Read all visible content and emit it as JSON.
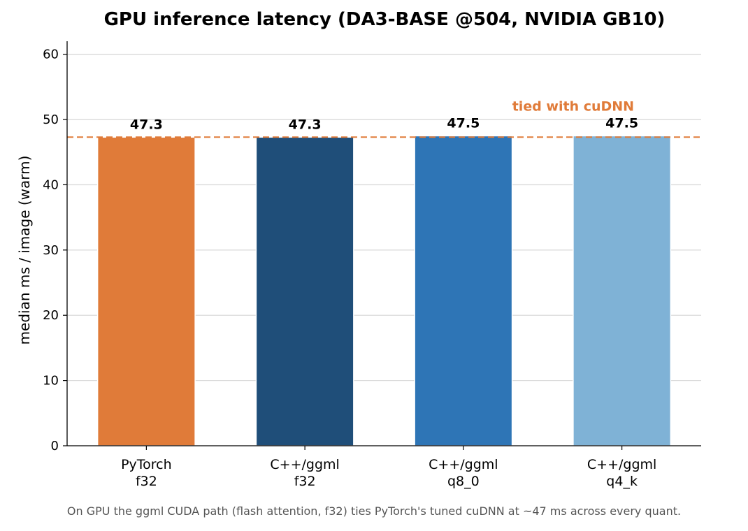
{
  "chart_data": {
    "type": "bar",
    "title": "GPU inference latency (DA3-BASE @504, NVIDIA GB10)",
    "ylabel": "median ms / image (warm)",
    "xlabel": "",
    "ylim": [
      0,
      62
    ],
    "yticks": [
      0,
      10,
      20,
      30,
      40,
      50,
      60
    ],
    "grid": true,
    "categories": [
      {
        "line1": "PyTorch",
        "line2": "f32"
      },
      {
        "line1": "C++/ggml",
        "line2": "f32"
      },
      {
        "line1": "C++/ggml",
        "line2": "q8_0"
      },
      {
        "line1": "C++/ggml",
        "line2": "q4_k"
      }
    ],
    "values": [
      47.3,
      47.3,
      47.5,
      47.5
    ],
    "value_labels": [
      "47.3",
      "47.3",
      "47.5",
      "47.5"
    ],
    "colors": [
      "#e07b39",
      "#1f4e79",
      "#2e75b6",
      "#7fb2d6"
    ],
    "reference_line": {
      "value": 47.3,
      "color": "#e07b39",
      "style": "dashed",
      "annotation": "tied with cuDNN"
    },
    "caption": "On GPU the ggml CUDA path (flash attention, f32) ties PyTorch's tuned cuDNN at ~47 ms across every quant."
  }
}
